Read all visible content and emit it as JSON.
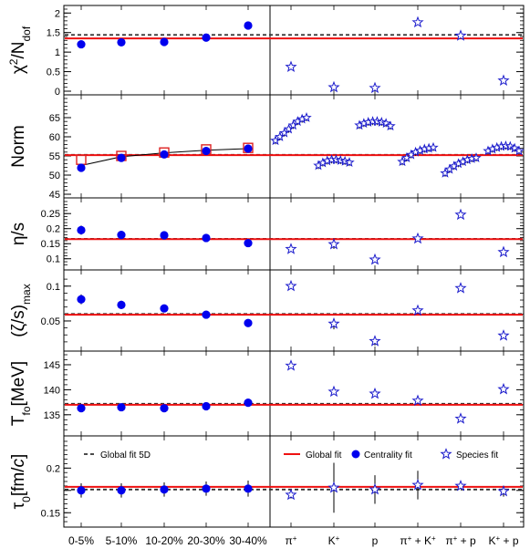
{
  "colors": {
    "centrality": "#0000ee",
    "species": "#1a1acc",
    "global_fit": "#ee1111",
    "global_fit_5d": "#333333",
    "norm_box": "#dd2222"
  },
  "chart_data": {
    "type": "scatter",
    "centrality_categories": [
      "0-5%",
      "5-10%",
      "10-20%",
      "20-30%",
      "30-40%"
    ],
    "species_categories": [
      {
        "parts": [
          [
            "π",
            "+"
          ]
        ]
      },
      {
        "parts": [
          [
            "K",
            "+"
          ]
        ]
      },
      {
        "parts": [
          [
            "p",
            ""
          ]
        ]
      },
      {
        "parts": [
          [
            "π",
            "+"
          ],
          [
            " + K",
            "+"
          ]
        ]
      },
      {
        "parts": [
          [
            "π",
            "+"
          ],
          [
            " + p",
            ""
          ]
        ]
      },
      {
        "parts": [
          [
            "K",
            "+"
          ],
          [
            " + p",
            ""
          ]
        ]
      }
    ],
    "legend": {
      "global_fit_5d": "Global fit 5D",
      "global_fit": "Global fit",
      "centrality_fit": "Centrality fit",
      "species_fit": "Species fit"
    },
    "panels": [
      {
        "ylabel": [
          [
            "χ",
            "",
            ""
          ],
          [
            "2",
            "sup",
            ""
          ],
          [
            "/N",
            "",
            ""
          ],
          [
            "dof",
            "sub",
            ""
          ]
        ],
        "ylim": [
          0,
          2.1
        ],
        "ticks": [
          0,
          0.5,
          1,
          1.5,
          2
        ],
        "tick_labels": [
          "0",
          "0.5",
          "1",
          "1.5",
          "2"
        ],
        "minor_step": 0.1,
        "global_fit": 1.35,
        "global_fit_5d": 1.44,
        "centrality": [
          {
            "y": 1.2
          },
          {
            "y": 1.25
          },
          {
            "y": 1.26
          },
          {
            "y": 1.37
          },
          {
            "y": 1.68
          }
        ],
        "species": [
          {
            "y": 0.62
          },
          {
            "y": 0.1
          },
          {
            "y": 0.08
          },
          {
            "y": 1.76
          },
          {
            "y": 1.42
          },
          {
            "y": 0.27
          }
        ]
      },
      {
        "ylabel": [
          [
            "Norm",
            "",
            ""
          ]
        ],
        "ylim": [
          45,
          70
        ],
        "ticks": [
          45,
          50,
          55,
          60,
          65
        ],
        "tick_labels": [
          "45",
          "50",
          "55",
          "60",
          "65"
        ],
        "minor_step": 1,
        "global_fit": 55.2,
        "global_fit_5d": 55.3,
        "centrality": [
          {
            "y": 51.9,
            "err": 0.8
          },
          {
            "y": 54.5,
            "err": 0.8
          },
          {
            "y": 55.4,
            "err": 0.8
          },
          {
            "y": 56.3,
            "err": 0.9
          },
          {
            "y": 56.9,
            "err": 1.0
          }
        ],
        "centrality_5d_boxes": [
          54.0,
          55.0,
          55.9,
          56.7,
          57.1
        ],
        "centrality_curve": [
          52.5,
          54.8,
          55.8,
          56.5,
          56.9
        ],
        "species_groups": [
          {
            "y": [
              59.0,
              60.0,
              61.0,
              62.0,
              63.0,
              64.0,
              64.6,
              65.0
            ]
          },
          {
            "y": [
              52.5,
              53.2,
              53.7,
              54.0,
              54.0,
              53.8,
              53.6,
              53.3
            ]
          },
          {
            "y": [
              63.0,
              63.5,
              63.8,
              64.0,
              64.0,
              63.8,
              63.5,
              62.8
            ]
          },
          {
            "y": [
              53.5,
              54.5,
              55.3,
              56.0,
              56.4,
              56.8,
              57.0,
              57.2
            ]
          },
          {
            "y": [
              50.5,
              51.5,
              52.3,
              53.0,
              53.5,
              54.0,
              54.3,
              54.5
            ]
          },
          {
            "y": [
              56.3,
              56.8,
              57.2,
              57.5,
              57.6,
              57.5,
              57.0,
              56.3
            ]
          }
        ]
      },
      {
        "ylabel": [
          [
            "η/s",
            "",
            ""
          ]
        ],
        "ylim": [
          0.075,
          0.29
        ],
        "ticks": [
          0.1,
          0.15,
          0.2,
          0.25
        ],
        "tick_labels": [
          "0.1",
          "0.15",
          "0.2",
          "0.25"
        ],
        "minor_step": 0.01,
        "global_fit": 0.165,
        "global_fit_5d": 0.166,
        "centrality": [
          {
            "y": 0.195,
            "err": 0.015
          },
          {
            "y": 0.179,
            "err": 0.013
          },
          {
            "y": 0.178,
            "err": 0.013
          },
          {
            "y": 0.169,
            "err": 0.013
          },
          {
            "y": 0.152,
            "err": 0.01
          }
        ],
        "species": [
          {
            "y": 0.132
          },
          {
            "y": 0.148,
            "err": 0.015
          },
          {
            "y": 0.097
          },
          {
            "y": 0.167
          },
          {
            "y": 0.246
          },
          {
            "y": 0.122
          }
        ]
      },
      {
        "ylabel": [
          [
            "(ζ/s)",
            "",
            ""
          ],
          [
            "max",
            "sub",
            ""
          ]
        ],
        "ylim": [
          0.012,
          0.118
        ],
        "ticks": [
          0.05,
          0.1
        ],
        "tick_labels": [
          "0.05",
          "0.1"
        ],
        "minor_step": 0.01,
        "global_fit": 0.059,
        "global_fit_5d": 0.06,
        "centrality": [
          {
            "y": 0.081,
            "err": 0.007
          },
          {
            "y": 0.073,
            "err": 0.006
          },
          {
            "y": 0.068,
            "err": 0.005
          },
          {
            "y": 0.059,
            "err": 0.005
          },
          {
            "y": 0.047,
            "err": 0.005
          }
        ],
        "species": [
          {
            "y": 0.1
          },
          {
            "y": 0.046,
            "err": 0.008
          },
          {
            "y": 0.021,
            "err": 0.006
          },
          {
            "y": 0.065
          },
          {
            "y": 0.097
          },
          {
            "y": 0.029
          }
        ]
      },
      {
        "ylabel": [
          [
            "T",
            "",
            ""
          ],
          [
            "fo",
            "sub",
            ""
          ],
          [
            "[MeV]",
            "",
            ""
          ]
        ],
        "ylim": [
          131.5,
          147
        ],
        "ticks": [
          135,
          140,
          145
        ],
        "tick_labels": [
          "135",
          "140",
          "145"
        ],
        "minor_step": 1,
        "global_fit": 137.0,
        "global_fit_5d": 137.2,
        "centrality": [
          {
            "y": 136.3
          },
          {
            "y": 136.5
          },
          {
            "y": 136.3
          },
          {
            "y": 136.7
          },
          {
            "y": 137.4
          }
        ],
        "species": [
          {
            "y": 144.8
          },
          {
            "y": 139.6
          },
          {
            "y": 139.2
          },
          {
            "y": 137.8
          },
          {
            "y": 134.2
          },
          {
            "y": 140.1
          }
        ]
      },
      {
        "ylabel": [
          [
            "τ",
            "",
            ""
          ],
          [
            "0",
            "sub",
            ""
          ],
          [
            "[fm/",
            "",
            ""
          ],
          [
            "c",
            "",
            "italic"
          ],
          [
            "]",
            "",
            ""
          ]
        ],
        "ylim": [
          0.138,
          0.232
        ],
        "ticks": [
          0.15,
          0.175,
          0.2
        ],
        "tick_labels": [
          "0.15",
          "",
          "0.2"
        ],
        "minor_step": 0.005,
        "global_fit": 0.179,
        "global_fit_5d": 0.176,
        "centrality": [
          {
            "y": 0.175,
            "err": 0.008
          },
          {
            "y": 0.175,
            "err": 0.008
          },
          {
            "y": 0.176,
            "err": 0.008
          },
          {
            "y": 0.177,
            "err": 0.008
          },
          {
            "y": 0.177,
            "err": 0.009
          }
        ],
        "species": [
          {
            "y": 0.17,
            "err": 0.004
          },
          {
            "y": 0.178,
            "err": 0.028
          },
          {
            "y": 0.176,
            "err": 0.016
          },
          {
            "y": 0.181,
            "err": 0.016
          },
          {
            "y": 0.18,
            "err": 0.003
          },
          {
            "y": 0.174,
            "err": 0.006
          }
        ]
      }
    ]
  }
}
